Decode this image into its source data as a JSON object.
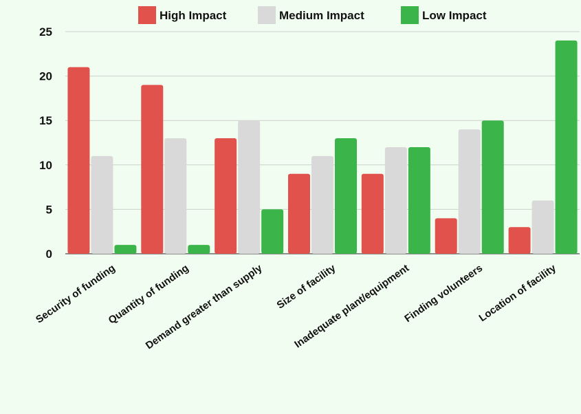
{
  "chart_data": {
    "type": "bar",
    "categories": [
      "Security of funding",
      "Quantity of funding",
      "Demand greater than supply",
      "Size of facility",
      "Inadequate plant/equipment",
      "Finding volunteers",
      "Location of facility"
    ],
    "series": [
      {
        "name": "High Impact",
        "color": "#e0524b",
        "values": [
          21,
          19,
          13,
          9,
          9,
          4,
          3
        ]
      },
      {
        "name": "Medium Impact",
        "color": "#d9d9d9",
        "values": [
          11,
          13,
          15,
          11,
          12,
          14,
          6
        ]
      },
      {
        "name": "Low Impact",
        "color": "#3bb54a",
        "values": [
          1,
          1,
          5,
          13,
          12,
          15,
          24
        ]
      }
    ],
    "ylim": [
      0,
      25
    ],
    "yticks": [
      0,
      5,
      10,
      15,
      20,
      25
    ],
    "grid": true,
    "legend": "top-center"
  }
}
